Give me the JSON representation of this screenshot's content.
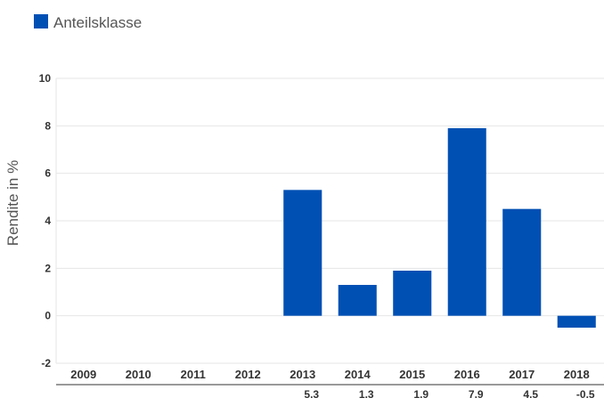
{
  "legend": {
    "label": "Anteilsklasse",
    "color": "#0050b4"
  },
  "chart_data": {
    "type": "bar",
    "categories": [
      "2009",
      "2010",
      "2011",
      "2012",
      "2013",
      "2014",
      "2015",
      "2016",
      "2017",
      "2018"
    ],
    "series": [
      {
        "name": "Anteilsklasse",
        "values": [
          null,
          null,
          null,
          null,
          5.3,
          1.3,
          1.9,
          7.9,
          4.5,
          -0.5
        ]
      }
    ],
    "value_labels": [
      "",
      "",
      "",
      "",
      "5.3",
      "1.3",
      "1.9",
      "7.9",
      "4.5",
      "-0.5"
    ],
    "ylabel": "Rendite in %",
    "xlabel": "",
    "ylim": [
      -2,
      10
    ],
    "yticks": [
      10,
      8,
      6,
      4,
      2,
      0,
      -2
    ],
    "grid": true,
    "legend_position": "top-left",
    "bar_color": "#0050b4"
  }
}
